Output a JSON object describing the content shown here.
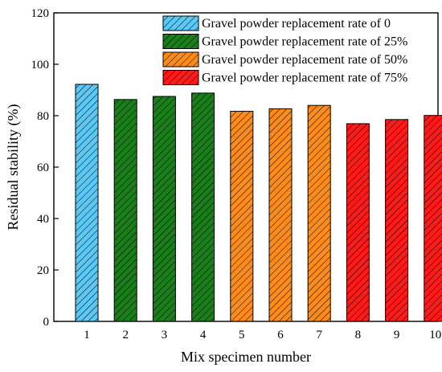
{
  "chart_data": {
    "type": "bar",
    "title": "",
    "xlabel": "Mix specimen number",
    "ylabel": "Residual stability (%)",
    "ylim": [
      0,
      120
    ],
    "yticks": [
      0,
      20,
      40,
      60,
      80,
      100,
      120
    ],
    "grid": false,
    "legend_position": "top-right",
    "categories": [
      "1",
      "2",
      "3",
      "4",
      "5",
      "6",
      "7",
      "8",
      "9",
      "10"
    ],
    "values": [
      92.2,
      86.3,
      87.5,
      88.8,
      81.7,
      82.7,
      84.0,
      76.9,
      78.5,
      80.1
    ],
    "groups": [
      0,
      1,
      1,
      1,
      2,
      2,
      2,
      3,
      3,
      3
    ],
    "series": [
      {
        "name": "Gravel powder replacement rate of 0",
        "color": "#5bc8f5"
      },
      {
        "name": "Gravel powder replacement rate of 25%",
        "color": "#1a7f1a"
      },
      {
        "name": "Gravel powder replacement rate of 50%",
        "color": "#ff8c1a"
      },
      {
        "name": "Gravel powder replacement rate of 75%",
        "color": "#ff1a1a"
      }
    ],
    "hatch": "diagonal"
  }
}
